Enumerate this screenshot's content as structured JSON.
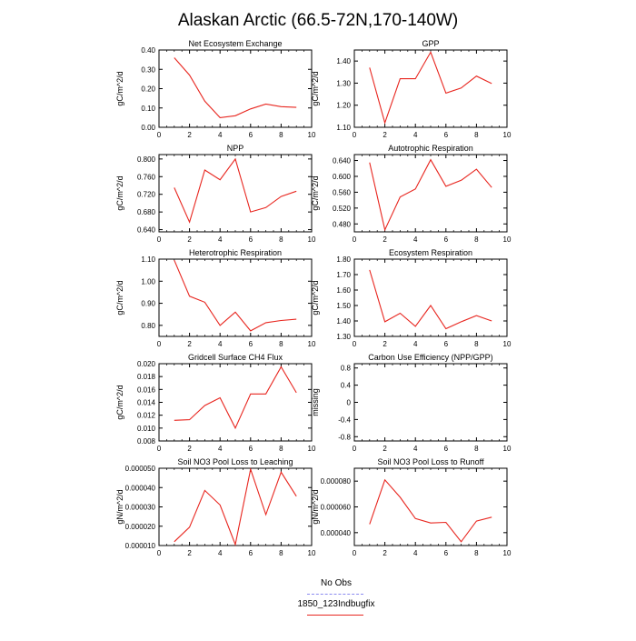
{
  "title": "Alaskan Arctic (66.5-72N,170-140W)",
  "colors": {
    "model": "#e8261f",
    "obs": "#8a8af0",
    "axis": "#000000"
  },
  "legend": {
    "obs_label": "No Obs",
    "model_label": "1850_123Indbugfix"
  },
  "chart_data": [
    {
      "type": "line",
      "title": "Net Ecosystem Exchange",
      "ylabel": "gC/m^2/d",
      "xlim": [
        0,
        10
      ],
      "xticks": [
        0,
        2,
        4,
        6,
        8,
        10
      ],
      "xtick_labels": [
        "0",
        "2",
        "4",
        "6",
        "8",
        "10"
      ],
      "ylim": [
        0.0,
        0.4
      ],
      "yticks": [
        0.0,
        0.1,
        0.2,
        0.3,
        0.4
      ],
      "ytick_labels": [
        "0.00",
        "0.10",
        "0.20",
        "0.30",
        "0.40"
      ],
      "grid": false,
      "legend": "none",
      "series": [
        {
          "x": [
            1,
            2,
            3,
            4,
            5,
            6,
            7,
            8,
            9
          ],
          "values": [
            0.36,
            0.27,
            0.135,
            0.05,
            0.06,
            0.095,
            0.12,
            0.107,
            0.103
          ]
        }
      ]
    },
    {
      "type": "line",
      "title": "GPP",
      "ylabel": "gC/m^2/d",
      "xlim": [
        0,
        10
      ],
      "xticks": [
        0,
        2,
        4,
        6,
        8,
        10
      ],
      "xtick_labels": [
        "0",
        "2",
        "4",
        "6",
        "8",
        "10"
      ],
      "ylim": [
        1.1,
        1.45
      ],
      "yticks": [
        1.1,
        1.2,
        1.3,
        1.4
      ],
      "ytick_labels": [
        "1.10",
        "1.20",
        "1.30",
        "1.40"
      ],
      "grid": false,
      "legend": "none",
      "series": [
        {
          "x": [
            1,
            2,
            3,
            4,
            5,
            6,
            7,
            8,
            9
          ],
          "values": [
            1.37,
            1.12,
            1.32,
            1.32,
            1.44,
            1.255,
            1.278,
            1.332,
            1.298
          ]
        }
      ]
    },
    {
      "type": "line",
      "title": "NPP",
      "ylabel": "gC/m^2/d",
      "xlim": [
        0,
        10
      ],
      "xticks": [
        0,
        2,
        4,
        6,
        8,
        10
      ],
      "xtick_labels": [
        "0",
        "2",
        "4",
        "6",
        "8",
        "10"
      ],
      "ylim": [
        0.635,
        0.81
      ],
      "yticks": [
        0.64,
        0.68,
        0.72,
        0.76,
        0.8
      ],
      "ytick_labels": [
        "0.640",
        "0.680",
        "0.720",
        "0.760",
        "0.800"
      ],
      "grid": false,
      "legend": "none",
      "series": [
        {
          "x": [
            1,
            2,
            3,
            4,
            5,
            6,
            7,
            8,
            9
          ],
          "values": [
            0.735,
            0.657,
            0.775,
            0.753,
            0.8,
            0.68,
            0.69,
            0.715,
            0.727
          ]
        }
      ]
    },
    {
      "type": "line",
      "title": "Autotrophic Respiration",
      "ylabel": "gC/m^2/d",
      "xlim": [
        0,
        10
      ],
      "xticks": [
        0,
        2,
        4,
        6,
        8,
        10
      ],
      "xtick_labels": [
        "0",
        "2",
        "4",
        "6",
        "8",
        "10"
      ],
      "ylim": [
        0.46,
        0.655
      ],
      "yticks": [
        0.48,
        0.52,
        0.56,
        0.6,
        0.64
      ],
      "ytick_labels": [
        "0.480",
        "0.520",
        "0.560",
        "0.600",
        "0.640"
      ],
      "grid": false,
      "legend": "none",
      "series": [
        {
          "x": [
            1,
            2,
            3,
            4,
            5,
            6,
            7,
            8,
            9
          ],
          "values": [
            0.635,
            0.465,
            0.548,
            0.568,
            0.642,
            0.575,
            0.59,
            0.618,
            0.572
          ]
        }
      ]
    },
    {
      "type": "line",
      "title": "Heterotrophic Respiration",
      "ylabel": "gC/m^2/d",
      "xlim": [
        0,
        10
      ],
      "xticks": [
        0,
        2,
        4,
        6,
        8,
        10
      ],
      "xtick_labels": [
        "0",
        "2",
        "4",
        "6",
        "8",
        "10"
      ],
      "ylim": [
        0.75,
        1.1
      ],
      "yticks": [
        0.8,
        0.9,
        1.0,
        1.1
      ],
      "ytick_labels": [
        "0.80",
        "0.90",
        "1.00",
        "1.10"
      ],
      "grid": false,
      "legend": "none",
      "series": [
        {
          "x": [
            1,
            2,
            3,
            4,
            5,
            6,
            7,
            8,
            9
          ],
          "values": [
            1.095,
            0.932,
            0.905,
            0.8,
            0.86,
            0.775,
            0.812,
            0.822,
            0.828
          ]
        }
      ]
    },
    {
      "type": "line",
      "title": "Ecosystem Respiration",
      "ylabel": "gC/m^2/d",
      "xlim": [
        0,
        10
      ],
      "xticks": [
        0,
        2,
        4,
        6,
        8,
        10
      ],
      "xtick_labels": [
        "0",
        "2",
        "4",
        "6",
        "8",
        "10"
      ],
      "ylim": [
        1.3,
        1.8
      ],
      "yticks": [
        1.3,
        1.4,
        1.5,
        1.6,
        1.7,
        1.8
      ],
      "ytick_labels": [
        "1.30",
        "1.40",
        "1.50",
        "1.60",
        "1.70",
        "1.80"
      ],
      "grid": false,
      "legend": "none",
      "series": [
        {
          "x": [
            1,
            2,
            3,
            4,
            5,
            6,
            7,
            8,
            9
          ],
          "values": [
            1.73,
            1.395,
            1.45,
            1.365,
            1.5,
            1.35,
            1.395,
            1.435,
            1.4
          ]
        }
      ]
    },
    {
      "type": "line",
      "title": "Gridcell Surface CH4 Flux",
      "ylabel": "gC/m^2/d",
      "xlim": [
        0,
        10
      ],
      "xticks": [
        0,
        2,
        4,
        6,
        8,
        10
      ],
      "xtick_labels": [
        "0",
        "2",
        "4",
        "6",
        "8",
        "10"
      ],
      "ylim": [
        0.008,
        0.02
      ],
      "yticks": [
        0.008,
        0.01,
        0.012,
        0.014,
        0.016,
        0.018,
        0.02
      ],
      "ytick_labels": [
        "0.008",
        "0.010",
        "0.012",
        "0.014",
        "0.016",
        "0.018",
        "0.020"
      ],
      "grid": false,
      "legend": "none",
      "series": [
        {
          "x": [
            1,
            2,
            3,
            4,
            5,
            6,
            7,
            8,
            9
          ],
          "values": [
            0.0112,
            0.0113,
            0.0135,
            0.0147,
            0.01,
            0.0153,
            0.0153,
            0.0195,
            0.0155
          ]
        }
      ]
    },
    {
      "type": "line",
      "title": "Carbon Use Efficiency (NPP/GPP)",
      "ylabel": "missing",
      "xlim": [
        0,
        10
      ],
      "xticks": [
        0,
        2,
        4,
        6,
        8,
        10
      ],
      "xtick_labels": [
        "0",
        "2",
        "4",
        "6",
        "8",
        "10"
      ],
      "ylim": [
        -0.9,
        0.9
      ],
      "yticks": [
        -0.8,
        -0.4,
        0.0,
        0.4,
        0.8
      ],
      "ytick_labels": [
        "-0.8",
        "-0.4",
        "0",
        "0.4",
        "0.8"
      ],
      "grid": false,
      "legend": "none",
      "series": []
    },
    {
      "type": "line",
      "title": "Soil NO3 Pool Loss to Leaching",
      "ylabel": "gN/m^2/d",
      "xlim": [
        0,
        10
      ],
      "xticks": [
        0,
        2,
        4,
        6,
        8,
        10
      ],
      "xtick_labels": [
        "0",
        "2",
        "4",
        "6",
        "8",
        "10"
      ],
      "ylim": [
        1e-05,
        5e-05
      ],
      "yticks": [
        1e-05,
        2e-05,
        3e-05,
        4e-05,
        5e-05
      ],
      "ytick_labels": [
        "0.000010",
        "0.000020",
        "0.000030",
        "0.000040",
        "0.000050"
      ],
      "grid": false,
      "legend": "none",
      "series": [
        {
          "x": [
            1,
            2,
            3,
            4,
            5,
            6,
            7,
            8,
            9
          ],
          "values": [
            1.2e-05,
            1.95e-05,
            3.85e-05,
            3.1e-05,
            1.05e-05,
            4.95e-05,
            2.6e-05,
            4.8e-05,
            3.55e-05
          ]
        }
      ]
    },
    {
      "type": "line",
      "title": "Soil NO3 Pool Loss to Runoff",
      "ylabel": "gN/m^2/d",
      "xlim": [
        0,
        10
      ],
      "xticks": [
        0,
        2,
        4,
        6,
        8,
        10
      ],
      "xtick_labels": [
        "0",
        "2",
        "4",
        "6",
        "8",
        "10"
      ],
      "ylim": [
        3e-05,
        9e-05
      ],
      "yticks": [
        4e-05,
        6e-05,
        8e-05
      ],
      "ytick_labels": [
        "0.000040",
        "0.000060",
        "0.000080"
      ],
      "grid": false,
      "legend": "none",
      "series": [
        {
          "x": [
            1,
            2,
            3,
            4,
            5,
            6,
            7,
            8,
            9
          ],
          "values": [
            4.65e-05,
            8.1e-05,
            6.75e-05,
            5.1e-05,
            4.75e-05,
            4.8e-05,
            3.3e-05,
            4.9e-05,
            5.2e-05
          ]
        }
      ]
    }
  ]
}
